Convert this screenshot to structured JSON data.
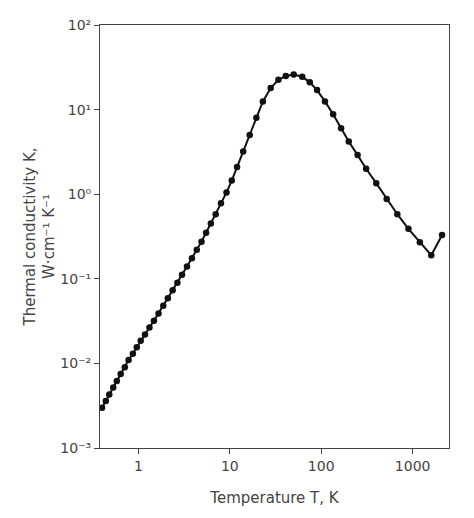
{
  "chart_data": {
    "type": "line",
    "xlabel": "Temperature T, K",
    "ylabel": "Thermal conductivity K,\nW·cm⁻¹ K⁻¹",
    "log": true,
    "grid": false,
    "color": "#111111",
    "marker": "circle",
    "line_style": "solid",
    "xlim": [
      0.38,
      2500
    ],
    "ylim": [
      0.001,
      100
    ],
    "xticks": [
      1,
      10,
      100,
      1000
    ],
    "yticks": [
      {
        "value": 0.001,
        "label": "10⁻³"
      },
      {
        "value": 0.01,
        "label": "10⁻²"
      },
      {
        "value": 0.1,
        "label": "10⁻¹"
      },
      {
        "value": 1,
        "label": "10⁰"
      },
      {
        "value": 10,
        "label": "10¹"
      },
      {
        "value": 100,
        "label": "10²"
      }
    ],
    "x": [
      0.4,
      0.44,
      0.48,
      0.53,
      0.58,
      0.64,
      0.71,
      0.78,
      0.87,
      0.96,
      1.06,
      1.18,
      1.32,
      1.48,
      1.66,
      1.87,
      2.1,
      2.37,
      2.67,
      3.0,
      3.4,
      3.85,
      4.35,
      4.9,
      5.5,
      6.2,
      7.0,
      8.0,
      9.2,
      10.5,
      12.0,
      14.0,
      16.5,
      19.5,
      23.0,
      28.0,
      34.0,
      41.0,
      50.0,
      62.0,
      75.0,
      90.0,
      110.0,
      135.0,
      165.0,
      200.0,
      250.0,
      310.0,
      400.0,
      520.0,
      680.0,
      900.0,
      1200.0,
      1600.0,
      2100.0
    ],
    "values": [
      0.003,
      0.0036,
      0.0043,
      0.0052,
      0.0062,
      0.0075,
      0.009,
      0.011,
      0.013,
      0.0155,
      0.0185,
      0.022,
      0.0265,
      0.032,
      0.039,
      0.048,
      0.059,
      0.073,
      0.09,
      0.112,
      0.14,
      0.175,
      0.22,
      0.275,
      0.35,
      0.45,
      0.58,
      0.78,
      1.05,
      1.45,
      2.1,
      3.2,
      5.0,
      8.0,
      12.5,
      18.0,
      22.5,
      25.0,
      26.0,
      24.5,
      21.0,
      17.0,
      12.5,
      8.8,
      6.0,
      4.2,
      2.9,
      2.0,
      1.35,
      0.88,
      0.58,
      0.39,
      0.27,
      0.19,
      0.33
    ]
  }
}
